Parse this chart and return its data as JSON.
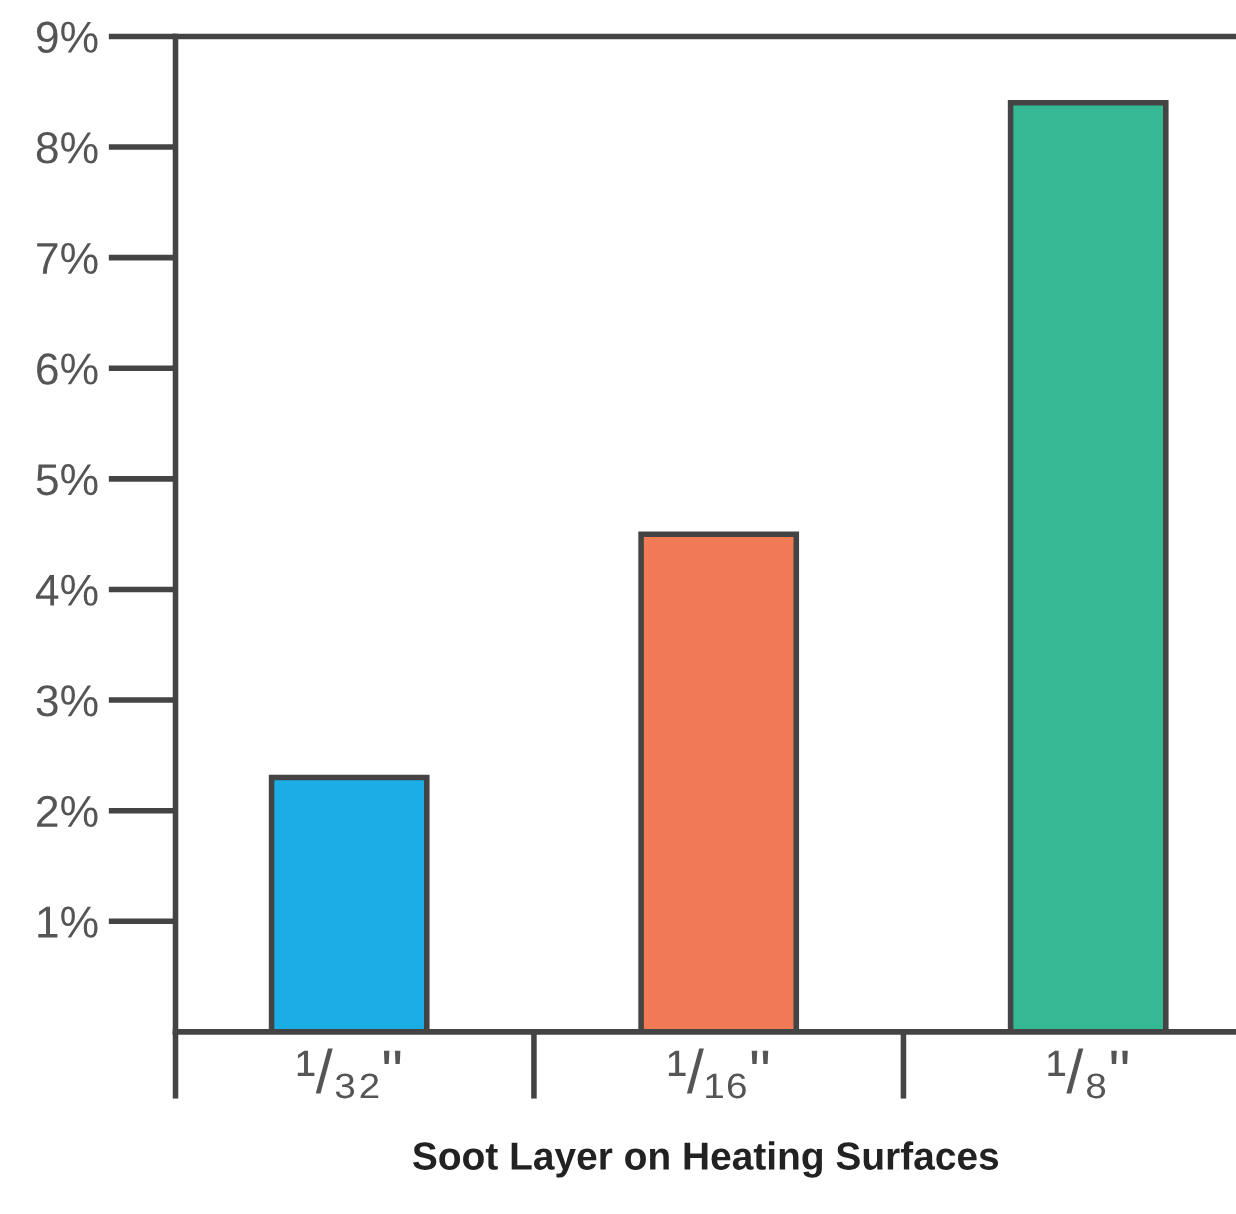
{
  "chart_data": {
    "type": "bar",
    "xlabel": "Soot Layer on Heating Surfaces",
    "categories": [
      "¹/₃₂\"",
      "¹/₁₆\"",
      "¹/₈\""
    ],
    "values": [
      2.3,
      4.5,
      8.4
    ],
    "colors": [
      "#1aaee5",
      "#f07a55",
      "#35b894"
    ],
    "ylim": [
      0,
      9
    ],
    "yticks": [
      {
        "value": 1,
        "label": "1%"
      },
      {
        "value": 2,
        "label": "2%"
      },
      {
        "value": 3,
        "label": "3%"
      },
      {
        "value": 4,
        "label": "4%"
      },
      {
        "value": 5,
        "label": "5%"
      },
      {
        "value": 6,
        "label": "6%"
      },
      {
        "value": 7,
        "label": "7%"
      },
      {
        "value": 8,
        "label": "8%"
      },
      {
        "value": 9,
        "label": "9%"
      }
    ],
    "grid": false
  }
}
